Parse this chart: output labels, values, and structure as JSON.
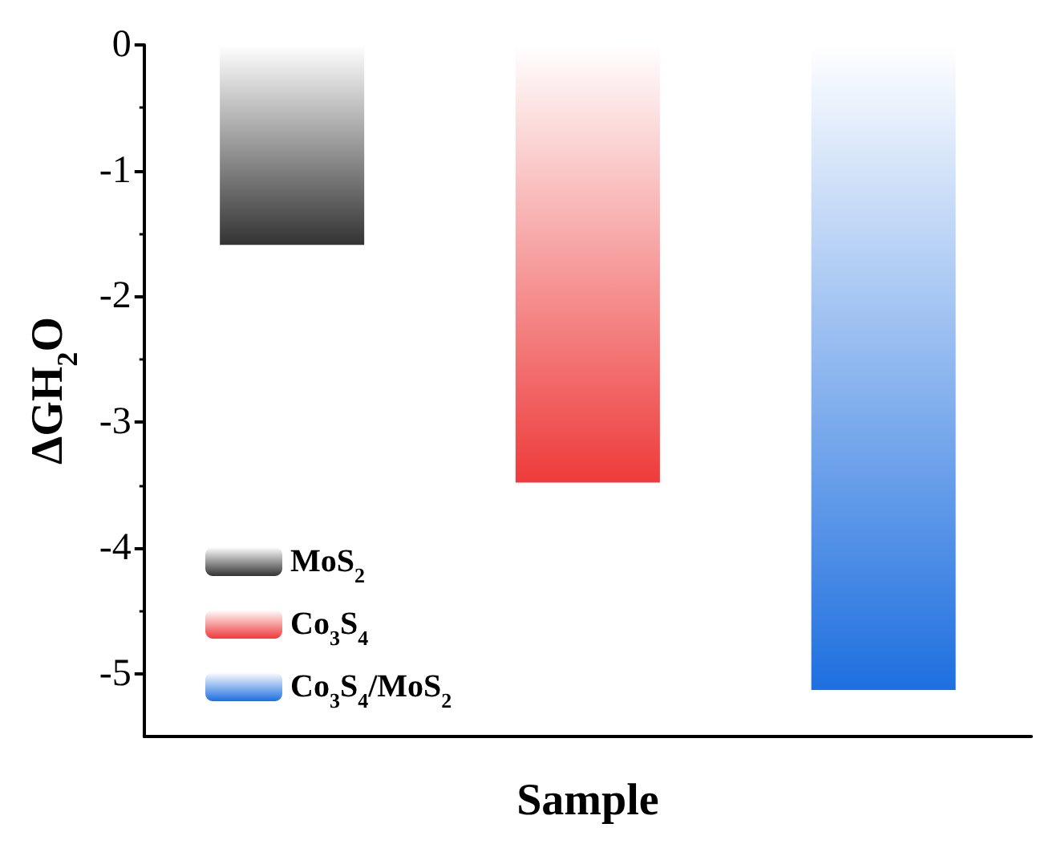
{
  "chart_data": {
    "type": "bar",
    "xlabel": "Sample",
    "ylabel": "ΔGH$_{2}$O",
    "categories": [
      null,
      null,
      null
    ],
    "series": [
      {
        "name": "MoS$_{2}$",
        "color": "#333333",
        "values": [
          -1.59,
          null,
          null
        ]
      },
      {
        "name": "Co$_{3}$S$_{4}$",
        "color": "#ee3b3b",
        "values": [
          null,
          -3.48,
          null
        ]
      },
      {
        "name": "Co$_{3}$S$_{4}$/MoS$_{2}$",
        "color": "#1e6fe0",
        "values": [
          null,
          null,
          -5.13
        ]
      }
    ],
    "ylim": [
      -5.5,
      0
    ],
    "yticks": [
      -5,
      -4,
      -3,
      -2,
      -1,
      0
    ],
    "grid": false,
    "legend": "bottom left"
  }
}
